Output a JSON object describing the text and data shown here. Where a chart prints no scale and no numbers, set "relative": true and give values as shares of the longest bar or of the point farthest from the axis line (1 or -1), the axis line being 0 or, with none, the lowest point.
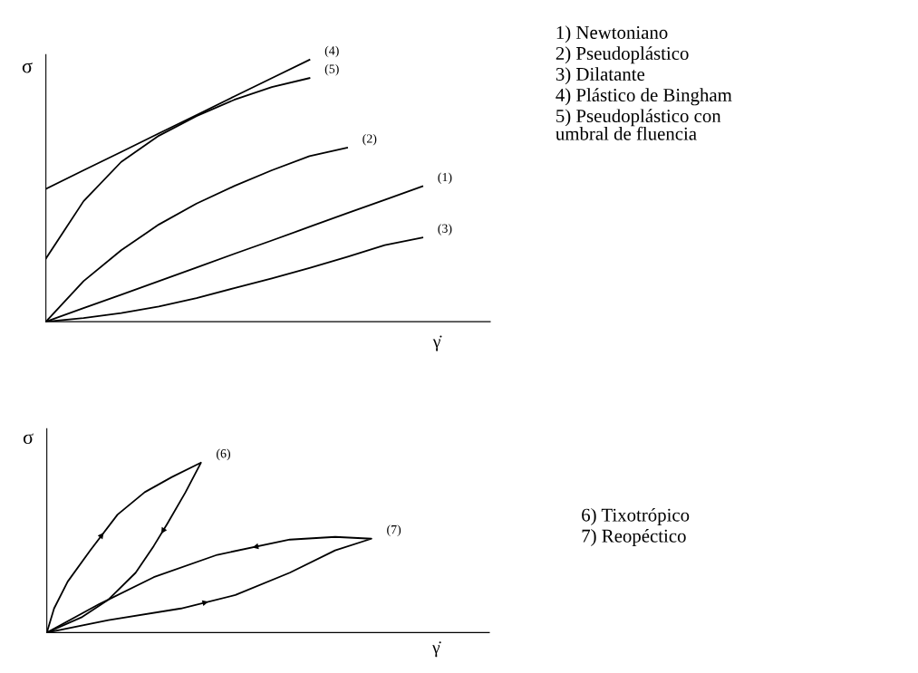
{
  "chart_data": [
    {
      "type": "line",
      "relative": true,
      "ylabel": "σ",
      "xlabel": "γ̇",
      "tick_labels": false,
      "legend": false,
      "marker": "none",
      "line_style": "solid",
      "annotations": [
        "1) Newtoniano",
        "2) Pseudoplástico",
        "3) Dilatante",
        "4) Plástico de Bingham",
        "5) Pseudoplástico con\numbral de fluencia"
      ],
      "categories": [
        null,
        null,
        null,
        null,
        null,
        null,
        null,
        null,
        null,
        null,
        null
      ],
      "series": [
        {
          "name": "(4)",
          "color": "#000000",
          "values": [
            0.507,
            0.578,
            0.648,
            0.719,
            0.789,
            0.86,
            0.93,
            1.0,
            null,
            null,
            null
          ]
        },
        {
          "name": "(5)",
          "color": "#000000",
          "values": [
            0.241,
            0.46,
            0.61,
            0.71,
            0.785,
            0.847,
            0.896,
            0.93,
            null,
            null,
            null
          ]
        },
        {
          "name": "(2)",
          "color": "#000000",
          "values": [
            0,
            0.155,
            0.273,
            0.371,
            0.451,
            0.518,
            0.578,
            0.632,
            0.664,
            null,
            null
          ]
        },
        {
          "name": "(1)",
          "color": "#000000",
          "values": [
            0,
            0.052,
            0.103,
            0.155,
            0.207,
            0.259,
            0.31,
            0.362,
            0.414,
            0.465,
            0.517
          ]
        },
        {
          "name": "(3)",
          "color": "#000000",
          "values": [
            0,
            0.014,
            0.033,
            0.058,
            0.09,
            0.128,
            0.165,
            0.205,
            0.247,
            0.292,
            0.321
          ]
        }
      ]
    },
    {
      "type": "other",
      "ylabel": "σ",
      "xlabel": "γ̇",
      "annotations": [
        "(6)",
        "(7)",
        "6) Tixotrópico",
        "7) Reopéctico"
      ]
    }
  ]
}
